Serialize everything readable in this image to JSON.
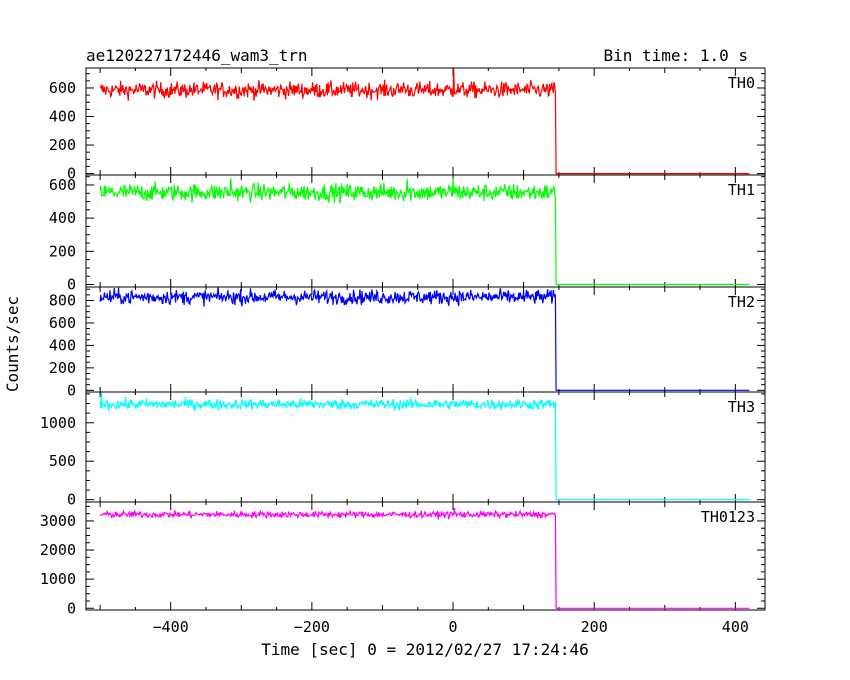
{
  "chart_data": {
    "type": "line",
    "title": "ae120227172446_wam3_trn",
    "bin_time_label": "Bin time: 1.0 s",
    "xlabel": "Time [sec] 0 = 2012/02/27 17:24:46",
    "ylabel": "Counts/sec",
    "xlim": [
      -520,
      442
    ],
    "x_ticks": [
      -400,
      -200,
      0,
      200,
      400
    ],
    "x_tick_labels": [
      "−400",
      "−200",
      "0",
      "200",
      "400"
    ],
    "drop_time": 145,
    "data_range": [
      -500,
      420
    ],
    "panels": [
      {
        "name": "TH0",
        "color": "#ff0000",
        "ylim": [
          -10,
          740
        ],
        "y_ticks": [
          0,
          200,
          400,
          600
        ],
        "y_tick_labels": [
          "0",
          "200",
          "400",
          "600"
        ],
        "level_before": 585,
        "noise": 28,
        "level_after": 0,
        "spikes": [
          {
            "x": 1,
            "y": 735
          },
          {
            "x": -70,
            "y": 640
          }
        ]
      },
      {
        "name": "TH1",
        "color": "#00ff00",
        "ylim": [
          -15,
          660
        ],
        "y_ticks": [
          0,
          200,
          400,
          600
        ],
        "y_tick_labels": [
          "0",
          "200",
          "400",
          "600"
        ],
        "level_before": 555,
        "noise": 26,
        "level_after": 0,
        "spikes": [
          {
            "x": -315,
            "y": 640
          },
          {
            "x": -65,
            "y": 635
          },
          {
            "x": 0,
            "y": 640
          }
        ]
      },
      {
        "name": "TH2",
        "color": "#0000ff",
        "ylim": [
          -15,
          920
        ],
        "y_ticks": [
          0,
          200,
          400,
          600,
          800
        ],
        "y_tick_labels": [
          "0",
          "200",
          "400",
          "600",
          "800"
        ],
        "level_before": 830,
        "noise": 32,
        "level_after": 0,
        "spikes": [
          {
            "x": -480,
            "y": 910
          }
        ]
      },
      {
        "name": "TH3",
        "color": "#00ffff",
        "ylim": [
          -30,
          1400
        ],
        "y_ticks": [
          0,
          500,
          1000
        ],
        "y_tick_labels": [
          "0",
          "500",
          "1000"
        ],
        "level_before": 1240,
        "noise": 34,
        "level_after": 0,
        "spikes": [
          {
            "x": -498,
            "y": 1390
          }
        ]
      },
      {
        "name": "TH0123",
        "color": "#ff00ff",
        "ylim": [
          -60,
          3650
        ],
        "y_ticks": [
          0,
          1000,
          2000,
          3000
        ],
        "y_tick_labels": [
          "0",
          "1000",
          "2000",
          "3000"
        ],
        "level_before": 3220,
        "noise": 55,
        "level_after": 0,
        "spikes": [
          {
            "x": 2,
            "y": 3450
          }
        ]
      }
    ],
    "grid": false,
    "legend": "panel labels top-right"
  }
}
